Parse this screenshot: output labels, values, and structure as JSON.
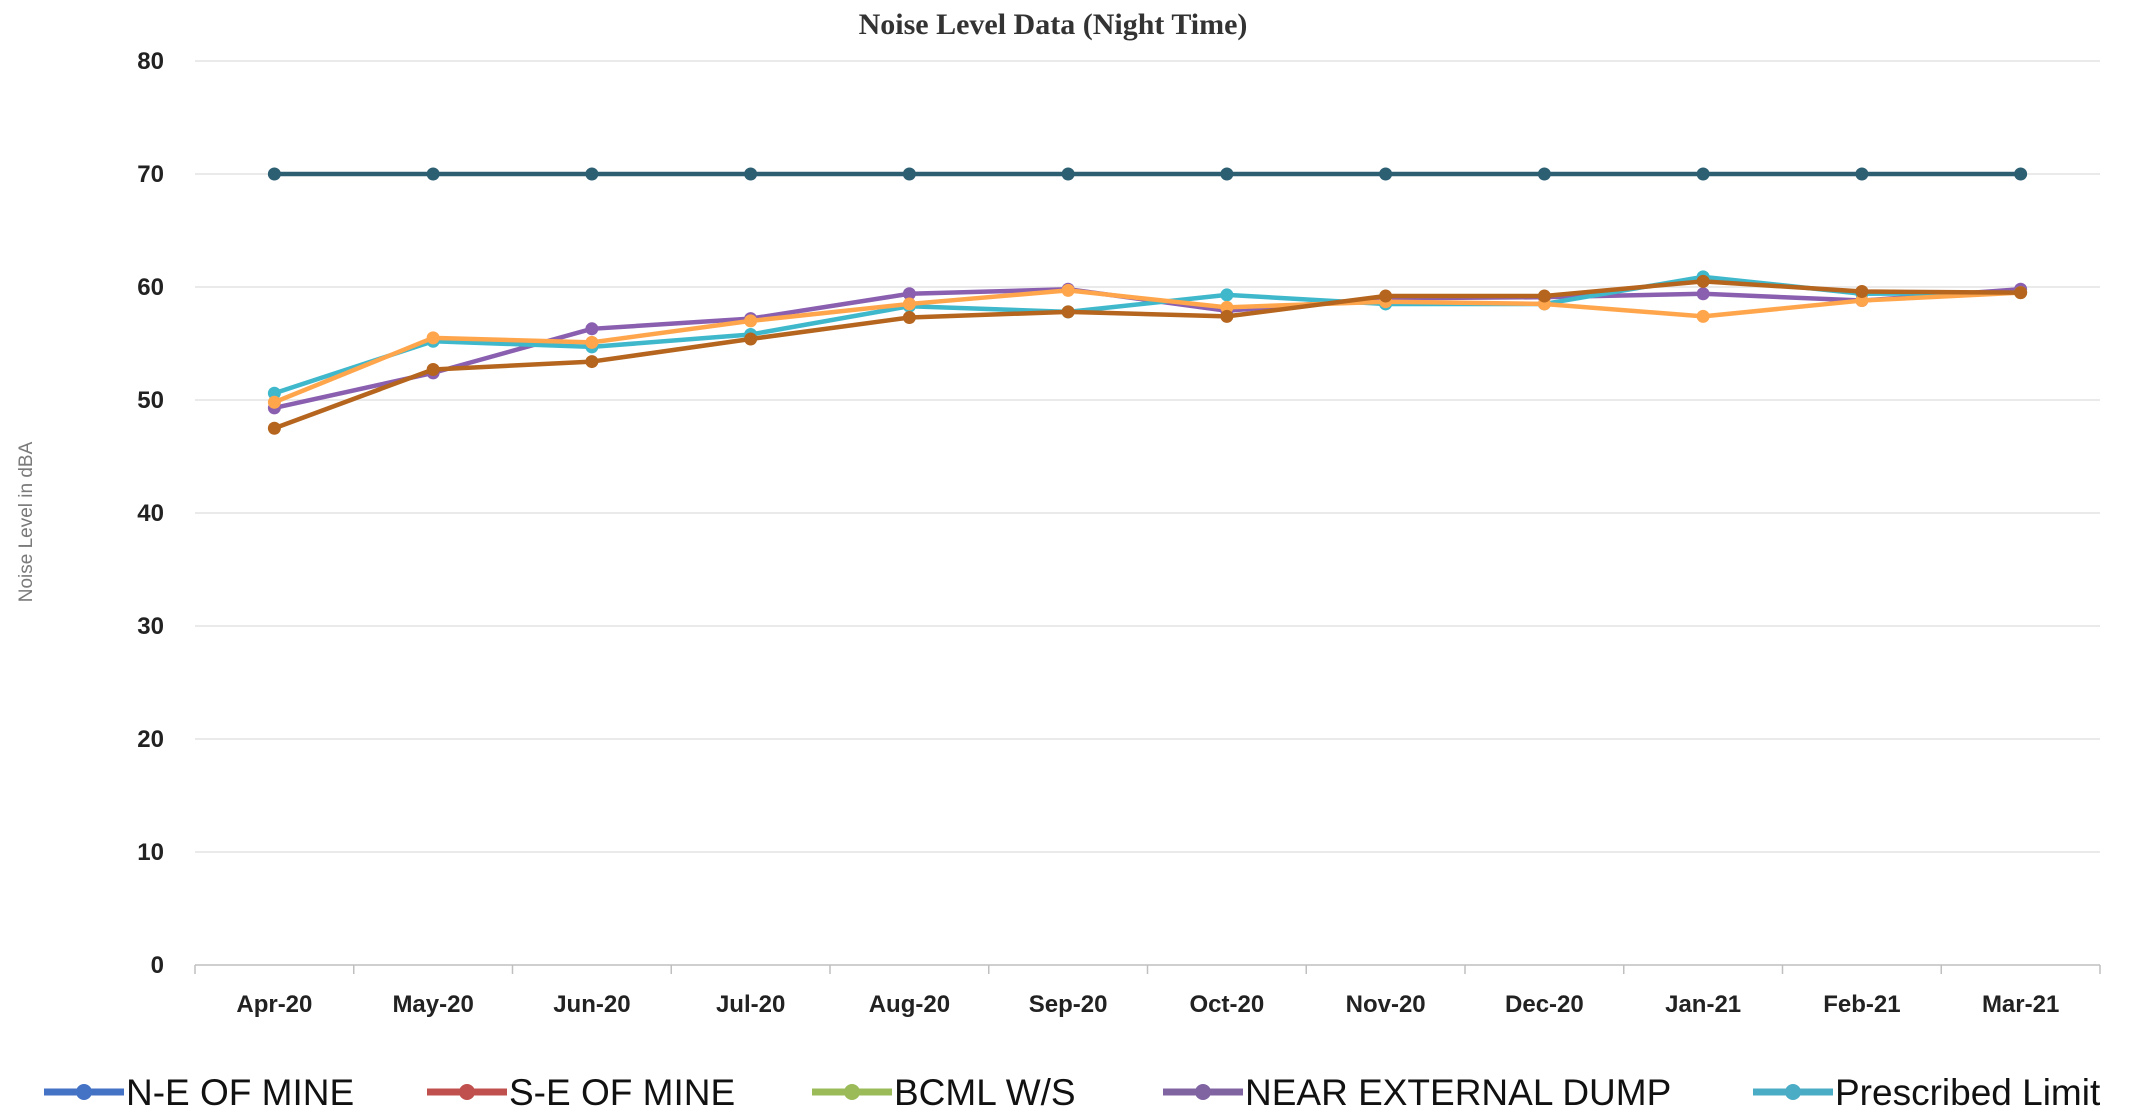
{
  "chart_data": {
    "type": "line",
    "title": "Noise Level Data (Night Time)",
    "xlabel": "",
    "ylabel": "Noise Level in dBA",
    "categories": [
      "Apr-20",
      "May-20",
      "Jun-20",
      "Jul-20",
      "Aug-20",
      "Sep-20",
      "Oct-20",
      "Nov-20",
      "Dec-20",
      "Jan-21",
      "Feb-21",
      "Mar-21"
    ],
    "ylim": [
      0,
      80
    ],
    "yticks": [
      0,
      10,
      20,
      30,
      40,
      50,
      60,
      70,
      80
    ],
    "grid": true,
    "legend_position": "bottom",
    "series": [
      {
        "name": "N-E OF MINE",
        "legend_color": "#4472c4",
        "line_color": "#2d5f73",
        "values": [
          70,
          70,
          70,
          70,
          70,
          70,
          70,
          70,
          70,
          70,
          70,
          70
        ]
      },
      {
        "name": "S-E OF MINE",
        "legend_color": "#c0504d",
        "line_color": "#ffa64d",
        "values": [
          49.8,
          55.5,
          55.1,
          57,
          58.5,
          59.7,
          58.2,
          58.7,
          58.5,
          57.4,
          58.8,
          59.5
        ]
      },
      {
        "name": "BCML W/S",
        "legend_color": "#9bbb59",
        "line_color": "#b5651d",
        "values": [
          47.5,
          52.7,
          53.4,
          55.4,
          57.3,
          57.8,
          57.4,
          59.2,
          59.2,
          60.5,
          59.6,
          59.5
        ]
      },
      {
        "name": "NEAR EXTERNAL DUMP",
        "legend_color": "#8064a2",
        "line_color": "#8a5fb0",
        "values": [
          49.3,
          52.4,
          56.3,
          57.2,
          59.4,
          59.8,
          57.9,
          59,
          59.1,
          59.4,
          58.8,
          59.8
        ]
      },
      {
        "name": "Prescribed Limit",
        "legend_color": "#4bacc6",
        "line_color": "#3fb8cc",
        "values": [
          50.6,
          55.2,
          54.7,
          55.8,
          58.3,
          57.8,
          59.3,
          58.5,
          58.5,
          60.9,
          59.4,
          59.5
        ]
      }
    ]
  }
}
